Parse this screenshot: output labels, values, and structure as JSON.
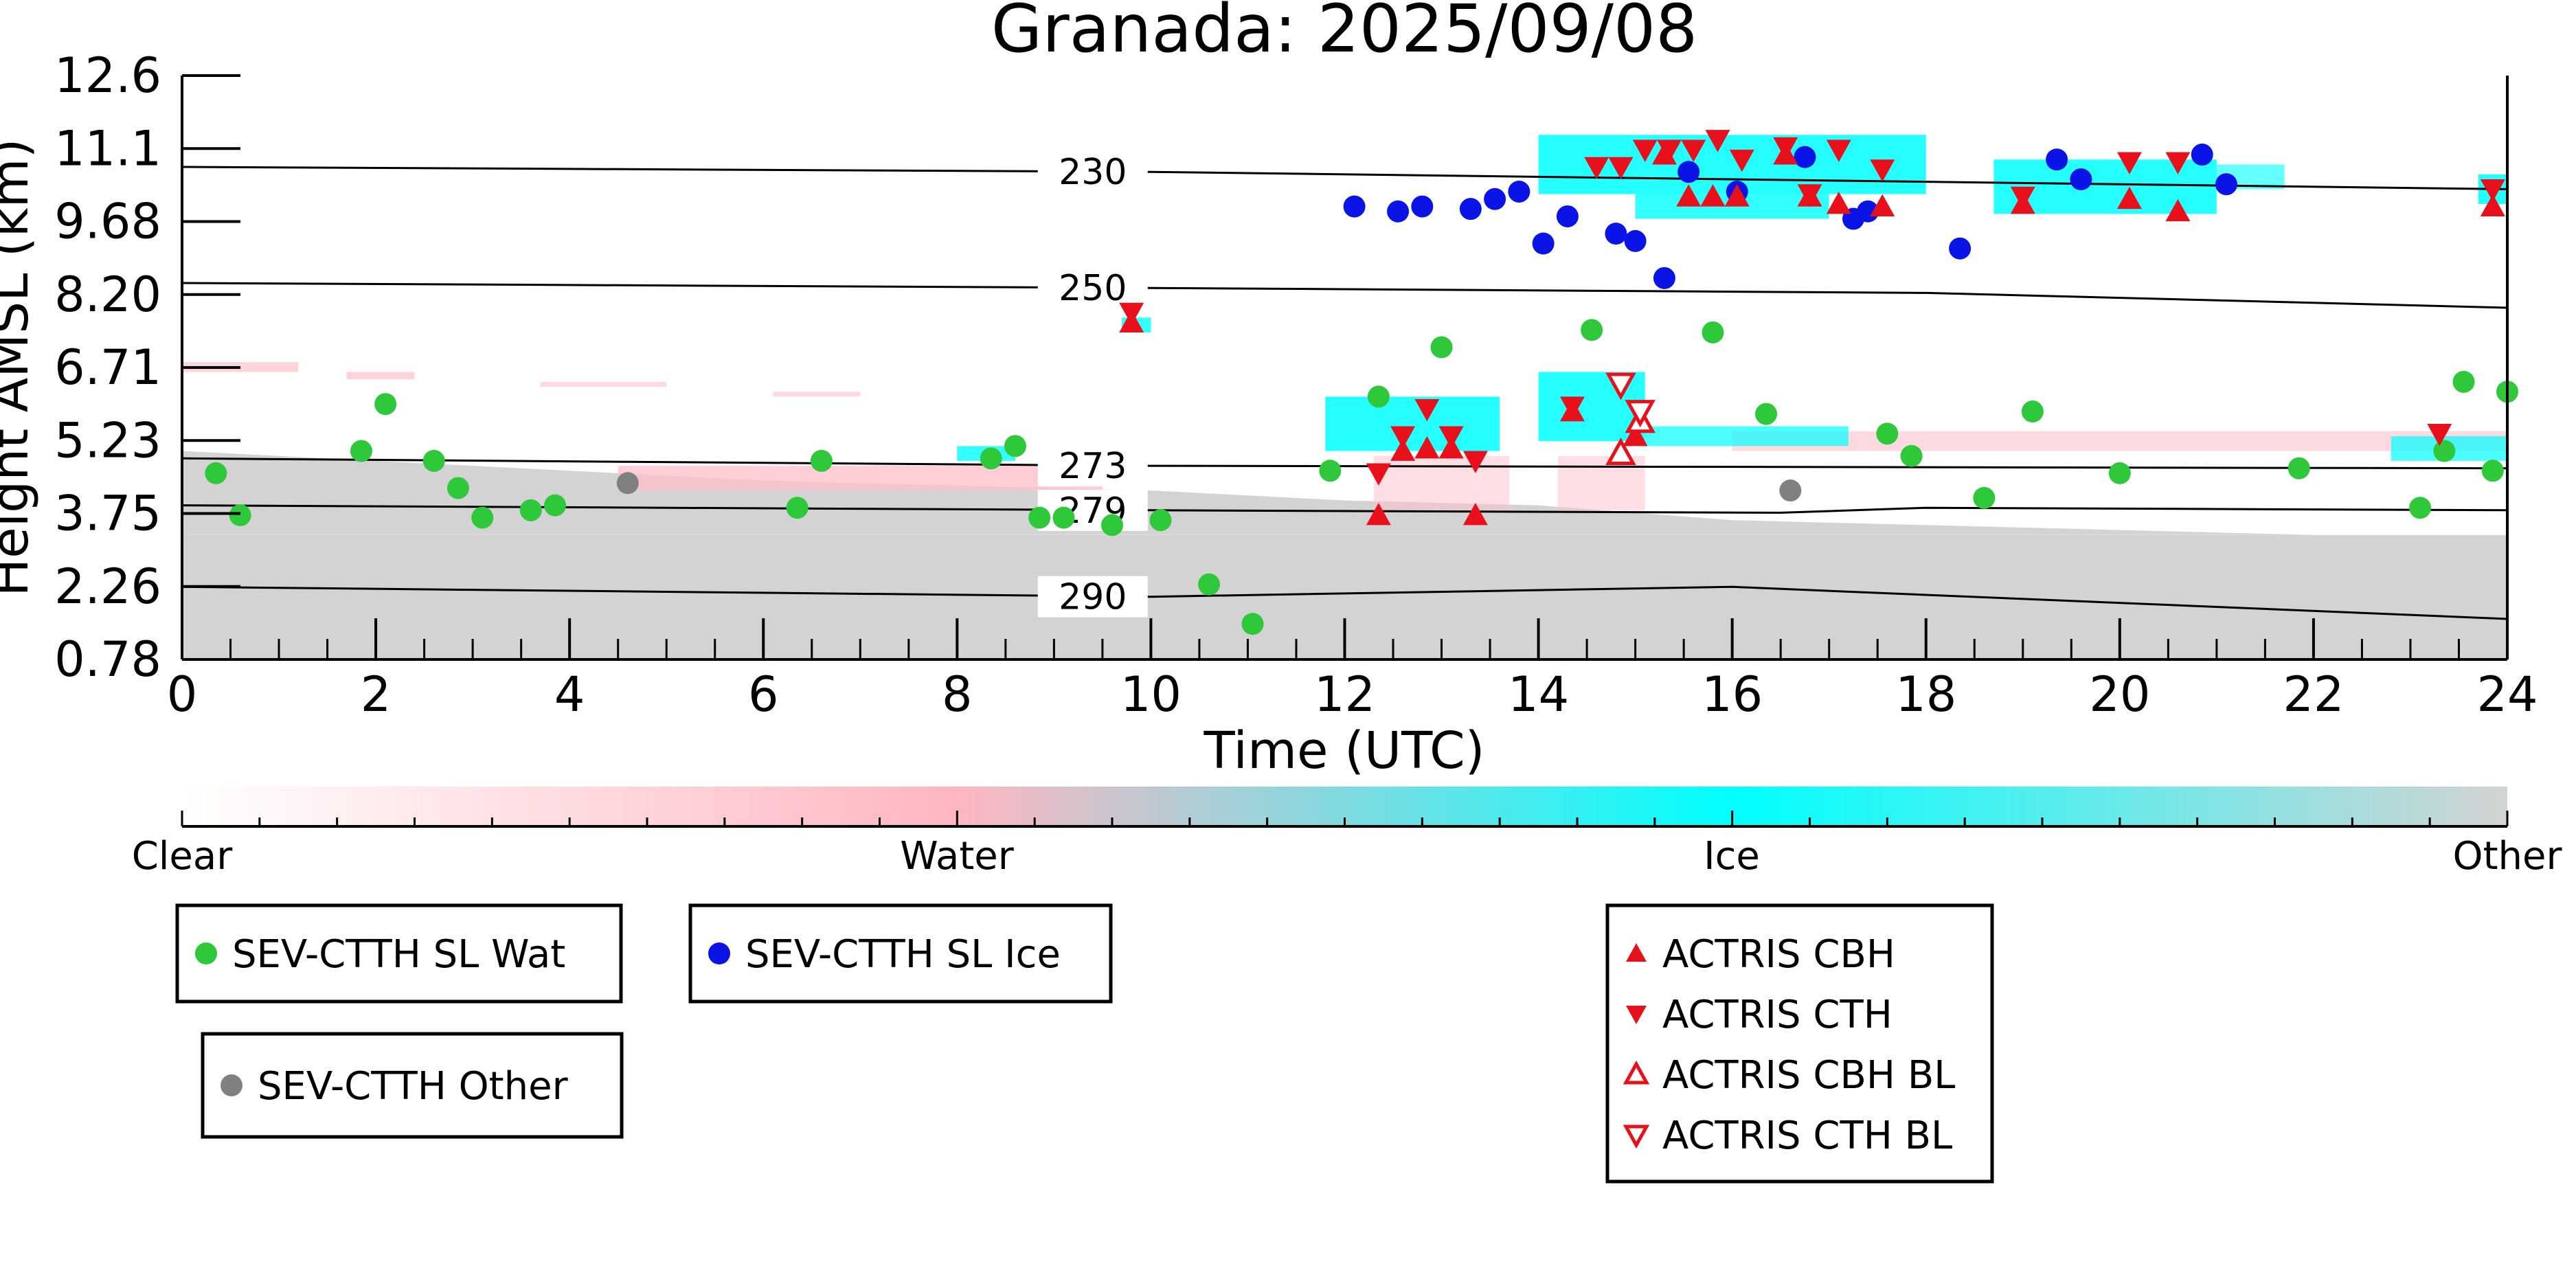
{
  "chart_data": {
    "type": "scatter",
    "title": "Granada: 2025/09/08",
    "xlabel": "Time (UTC)",
    "ylabel": "Height AMSL (km)",
    "xlim": [
      0,
      24
    ],
    "ylim": [
      0.78,
      12.6
    ],
    "x_ticks": [
      "0",
      "2",
      "4",
      "6",
      "8",
      "10",
      "12",
      "14",
      "16",
      "18",
      "20",
      "22",
      "24"
    ],
    "y_ticks": [
      "0.78",
      "2.26",
      "3.75",
      "5.23",
      "6.71",
      "8.20",
      "9.68",
      "11.1",
      "12.6"
    ],
    "colorbar": {
      "labels": [
        "Clear",
        "Water",
        "Ice",
        "Other"
      ],
      "colors": [
        "#ffffff",
        "#ffb6c1",
        "#00ffff",
        "#d3d3d3"
      ]
    },
    "temperature_contours": [
      {
        "label": "230",
        "points": [
          [
            0,
            10.75
          ],
          [
            10,
            10.65
          ],
          [
            24,
            10.3
          ]
        ]
      },
      {
        "label": "250",
        "points": [
          [
            0,
            8.4
          ],
          [
            10,
            8.3
          ],
          [
            18,
            8.2
          ],
          [
            24,
            7.9
          ]
        ]
      },
      {
        "label": "273",
        "points": [
          [
            0,
            4.85
          ],
          [
            10,
            4.7
          ],
          [
            24,
            4.65
          ]
        ]
      },
      {
        "label": "279",
        "points": [
          [
            0,
            3.9
          ],
          [
            10,
            3.8
          ],
          [
            16.5,
            3.75
          ],
          [
            18,
            3.85
          ],
          [
            24,
            3.8
          ]
        ]
      },
      {
        "label": "290",
        "points": [
          [
            0,
            2.25
          ],
          [
            10,
            2.05
          ],
          [
            16,
            2.25
          ],
          [
            24,
            1.6
          ]
        ]
      }
    ],
    "series": [
      {
        "name": "SEV-CTTH SL Wat",
        "color": "#2ec83a",
        "marker": "circle",
        "points": [
          [
            0.35,
            4.55
          ],
          [
            0.6,
            3.7
          ],
          [
            1.85,
            5.0
          ],
          [
            2.1,
            5.95
          ],
          [
            2.6,
            4.8
          ],
          [
            2.85,
            4.25
          ],
          [
            3.1,
            3.65
          ],
          [
            3.6,
            3.8
          ],
          [
            3.85,
            3.9
          ],
          [
            6.35,
            3.85
          ],
          [
            6.6,
            4.8
          ],
          [
            8.35,
            4.85
          ],
          [
            8.6,
            5.1
          ],
          [
            8.85,
            3.65
          ],
          [
            9.1,
            3.65
          ],
          [
            9.6,
            3.5
          ],
          [
            10.1,
            3.6
          ],
          [
            10.6,
            2.3
          ],
          [
            11.05,
            1.5
          ],
          [
            11.85,
            4.6
          ],
          [
            12.35,
            6.1
          ],
          [
            13.0,
            7.1
          ],
          [
            14.55,
            7.45
          ],
          [
            15.8,
            7.4
          ],
          [
            16.35,
            5.75
          ],
          [
            17.6,
            5.35
          ],
          [
            17.85,
            4.9
          ],
          [
            18.6,
            4.05
          ],
          [
            19.1,
            5.8
          ],
          [
            20.0,
            4.55
          ],
          [
            21.85,
            4.65
          ],
          [
            23.1,
            3.85
          ],
          [
            23.35,
            5.0
          ],
          [
            23.55,
            6.4
          ],
          [
            23.85,
            4.6
          ],
          [
            24.05,
            6.2
          ]
        ]
      },
      {
        "name": "SEV-CTTH SL Ice",
        "color": "#0a14e6",
        "marker": "circle",
        "points": [
          [
            12.1,
            9.95
          ],
          [
            12.55,
            9.85
          ],
          [
            12.8,
            9.95
          ],
          [
            13.3,
            9.9
          ],
          [
            13.55,
            10.1
          ],
          [
            13.8,
            10.25
          ],
          [
            14.05,
            9.2
          ],
          [
            14.3,
            9.75
          ],
          [
            14.8,
            9.4
          ],
          [
            15.0,
            9.25
          ],
          [
            15.3,
            8.5
          ],
          [
            15.55,
            10.65
          ],
          [
            16.05,
            10.25
          ],
          [
            16.75,
            10.95
          ],
          [
            17.25,
            9.7
          ],
          [
            17.4,
            9.85
          ],
          [
            18.35,
            9.1
          ],
          [
            19.35,
            10.9
          ],
          [
            19.6,
            10.5
          ],
          [
            20.85,
            11.0
          ],
          [
            21.1,
            10.4
          ]
        ]
      },
      {
        "name": "SEV-CTTH Other",
        "color": "#808080",
        "marker": "circle",
        "points": [
          [
            4.6,
            4.35
          ],
          [
            16.6,
            4.2
          ]
        ]
      },
      {
        "name": "ACTRIS CBH",
        "color": "#e8101a",
        "marker": "triangle-up",
        "points": [
          [
            9.8,
            7.6
          ],
          [
            12.35,
            3.7
          ],
          [
            12.6,
            5.0
          ],
          [
            12.85,
            5.05
          ],
          [
            13.1,
            5.05
          ],
          [
            13.35,
            3.7
          ],
          [
            14.35,
            5.8
          ],
          [
            15.0,
            5.3
          ],
          [
            15.3,
            11.0
          ],
          [
            15.55,
            10.15
          ],
          [
            15.8,
            10.15
          ],
          [
            16.05,
            10.15
          ],
          [
            16.55,
            11.0
          ],
          [
            16.8,
            10.15
          ],
          [
            17.1,
            10.0
          ],
          [
            17.55,
            9.95
          ],
          [
            19.0,
            10.0
          ],
          [
            20.1,
            10.1
          ],
          [
            20.6,
            9.85
          ],
          [
            23.85,
            9.95
          ]
        ]
      },
      {
        "name": "ACTRIS CTH",
        "color": "#e8101a",
        "marker": "triangle-down",
        "points": [
          [
            9.8,
            7.8
          ],
          [
            12.35,
            4.55
          ],
          [
            12.6,
            5.3
          ],
          [
            12.85,
            5.85
          ],
          [
            13.1,
            5.3
          ],
          [
            13.35,
            4.8
          ],
          [
            14.35,
            5.9
          ],
          [
            14.6,
            10.75
          ],
          [
            14.85,
            10.75
          ],
          [
            15.1,
            11.1
          ],
          [
            15.35,
            11.1
          ],
          [
            15.6,
            11.1
          ],
          [
            15.85,
            11.3
          ],
          [
            16.1,
            10.9
          ],
          [
            16.55,
            11.15
          ],
          [
            16.8,
            10.2
          ],
          [
            17.1,
            11.1
          ],
          [
            17.55,
            10.7
          ],
          [
            19.0,
            10.15
          ],
          [
            20.1,
            10.85
          ],
          [
            20.6,
            10.85
          ],
          [
            23.3,
            5.35
          ],
          [
            23.85,
            10.3
          ]
        ]
      },
      {
        "name": "ACTRIS CBH BL",
        "color": "#e8101a",
        "marker": "triangle-up-open",
        "points": [
          [
            14.85,
            4.95
          ],
          [
            15.05,
            5.6
          ]
        ]
      },
      {
        "name": "ACTRIS CTH BL",
        "color": "#e8101a",
        "marker": "triangle-down-open",
        "points": [
          [
            14.85,
            6.35
          ],
          [
            15.05,
            5.8
          ]
        ]
      }
    ],
    "legend": {
      "placement": "bottom",
      "groups": [
        [
          "SEV-CTTH SL Wat"
        ],
        [
          "SEV-CTTH SL Ice"
        ],
        [
          "SEV-CTTH Other"
        ],
        [
          "ACTRIS CBH",
          "ACTRIS CTH",
          "ACTRIS CBH BL",
          "ACTRIS CTH BL"
        ]
      ]
    }
  }
}
